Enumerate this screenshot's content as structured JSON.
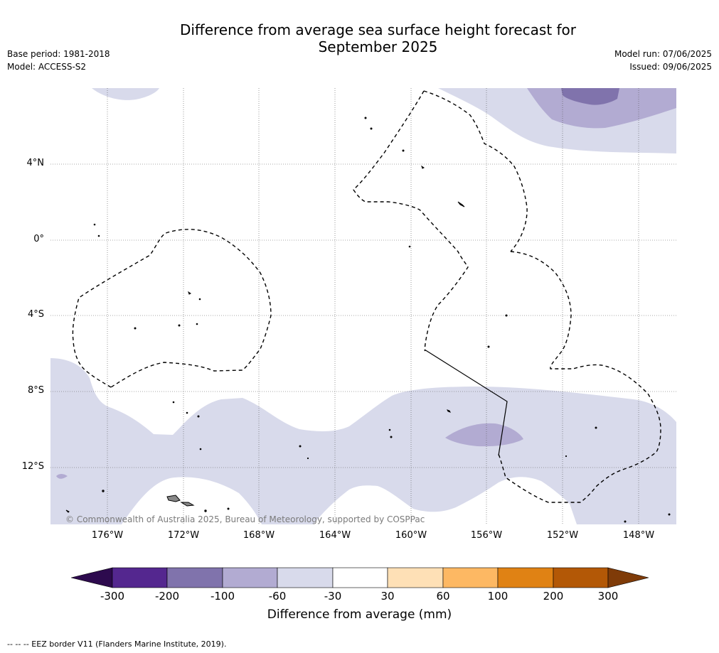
{
  "title_line1": "Difference from average sea surface height forecast for",
  "title_line2": "September 2025",
  "base_period": "Base period: 1981-2018",
  "model": "Model: ACCESS-S2",
  "model_run": "Model run: 07/06/2025",
  "issued": "Issued: 09/06/2025",
  "lat_labels": [
    "4°N",
    "0°",
    "4°S",
    "8°S",
    "12°S"
  ],
  "lon_labels": [
    "176°W",
    "172°W",
    "168°W",
    "164°W",
    "160°W",
    "156°W",
    "152°W",
    "148°W"
  ],
  "copyright": "© Commonwealth of Australia 2025, Bureau of Meteorology, supported by COSPPac",
  "colorbar": {
    "title": "Difference from average (mm)",
    "ticks": [
      "-300",
      "-200",
      "-100",
      "-60",
      "-30",
      "30",
      "60",
      "100",
      "200",
      "300"
    ],
    "colors": {
      "below_min": "#2d0a4e",
      "neg_300_200": "#54278f",
      "neg_200_100": "#8073ac",
      "neg_100_60": "#b2abd2",
      "neg_60_30": "#d8daeb",
      "neg_30_30": "#ffffff",
      "pos_30_60": "#fee0b6",
      "pos_60_100": "#fdb863",
      "pos_100_200": "#e08214",
      "pos_200_300": "#b35806",
      "above_max": "#7f3b08"
    }
  },
  "footnote": "--  --  -- EEZ border V11 (Flanders Marine Institute, 2019)."
}
